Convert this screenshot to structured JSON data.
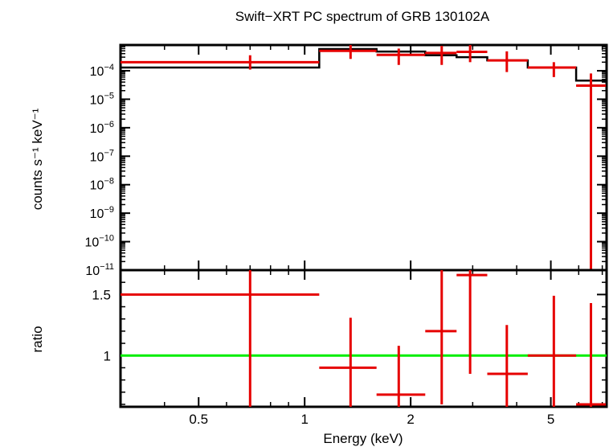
{
  "chart_data": [
    {
      "type": "line",
      "panel": "spectrum",
      "title": "Swift−XRT PC spectrum of GRB 130102A",
      "ylabel": "counts s⁻¹ keV⁻¹",
      "xlim": [
        0.3,
        7.2
      ],
      "ylim": [
        1e-11,
        0.0008
      ],
      "xscale": "log",
      "yscale": "log",
      "yticks": [
        {
          "value": 0.0001,
          "base": "10",
          "exp": "−4"
        },
        {
          "value": 1e-05,
          "base": "10",
          "exp": "−5"
        },
        {
          "value": 1e-06,
          "base": "10",
          "exp": "−6"
        },
        {
          "value": 1e-07,
          "base": "10",
          "exp": "−7"
        },
        {
          "value": 1e-08,
          "base": "10",
          "exp": "−8"
        },
        {
          "value": 1e-09,
          "base": "10",
          "exp": "−9"
        },
        {
          "value": 1e-10,
          "base": "10",
          "exp": "−10"
        },
        {
          "value": 1e-11,
          "base": "10",
          "exp": "−11"
        }
      ],
      "data_color": "#e60000",
      "model_color": "#000000",
      "data_points": [
        {
          "x": 0.7,
          "xlo": 0.3,
          "xhi": 1.1,
          "y": 0.0002,
          "ylo": 0.00011,
          "yhi": 0.00035
        },
        {
          "x": 1.35,
          "xlo": 1.1,
          "xhi": 1.6,
          "y": 0.0005,
          "ylo": 0.00026,
          "yhi": 0.0008
        },
        {
          "x": 1.85,
          "xlo": 1.6,
          "xhi": 2.2,
          "y": 0.00036,
          "ylo": 0.00016,
          "yhi": 0.0006
        },
        {
          "x": 2.45,
          "xlo": 2.2,
          "xhi": 2.7,
          "y": 0.00042,
          "ylo": 0.00016,
          "yhi": 0.00075
        },
        {
          "x": 2.95,
          "xlo": 2.7,
          "xhi": 3.3,
          "y": 0.00046,
          "ylo": 0.0002,
          "yhi": 0.0008
        },
        {
          "x": 3.75,
          "xlo": 3.3,
          "xhi": 4.3,
          "y": 0.00023,
          "ylo": 9e-05,
          "yhi": 0.00048
        },
        {
          "x": 5.1,
          "xlo": 4.3,
          "xhi": 5.9,
          "y": 0.00013,
          "ylo": 6e-05,
          "yhi": 0.0002
        },
        {
          "x": 6.5,
          "xlo": 5.9,
          "xhi": 7.2,
          "y": 3e-05,
          "ylo": 1e-11,
          "yhi": 8e-05
        }
      ],
      "model_steps": [
        {
          "xlo": 0.3,
          "xhi": 1.1,
          "y": 0.00013
        },
        {
          "xlo": 1.1,
          "xhi": 1.6,
          "y": 0.00058
        },
        {
          "xlo": 1.6,
          "xhi": 2.2,
          "y": 0.00047
        },
        {
          "xlo": 2.2,
          "xhi": 2.7,
          "y": 0.00035
        },
        {
          "xlo": 2.7,
          "xhi": 3.3,
          "y": 0.0003
        },
        {
          "xlo": 3.3,
          "xhi": 4.3,
          "y": 0.00023
        },
        {
          "xlo": 4.3,
          "xhi": 5.9,
          "y": 0.00013
        },
        {
          "xlo": 5.9,
          "xhi": 7.2,
          "y": 4.5e-05
        }
      ]
    },
    {
      "type": "scatter",
      "panel": "ratio",
      "xlabel": "Energy (keV)",
      "ylabel": "ratio",
      "xlim": [
        0.3,
        7.2
      ],
      "ylim": [
        0.58,
        1.7
      ],
      "xscale": "log",
      "xticks": [
        {
          "value": 0.5,
          "label": "0.5"
        },
        {
          "value": 1,
          "label": "1"
        },
        {
          "value": 2,
          "label": "2"
        },
        {
          "value": 5,
          "label": "5"
        }
      ],
      "yticks": [
        {
          "value": 1,
          "label": "1"
        },
        {
          "value": 1.5,
          "label": "1.5"
        }
      ],
      "reference_line": {
        "y": 1.0,
        "color": "#00ee00"
      },
      "data_color": "#e60000",
      "data_points": [
        {
          "x": 0.7,
          "xlo": 0.3,
          "xhi": 1.1,
          "y": 1.5,
          "ylo": 0.58,
          "yhi": 1.7
        },
        {
          "x": 1.35,
          "xlo": 1.1,
          "xhi": 1.6,
          "y": 0.9,
          "ylo": 0.58,
          "yhi": 1.31
        },
        {
          "x": 1.85,
          "xlo": 1.6,
          "xhi": 2.2,
          "y": 0.68,
          "ylo": 0.58,
          "yhi": 1.08
        },
        {
          "x": 2.45,
          "xlo": 2.2,
          "xhi": 2.7,
          "y": 1.2,
          "ylo": 0.6,
          "yhi": 1.7
        },
        {
          "x": 2.95,
          "xlo": 2.7,
          "xhi": 3.3,
          "y": 1.66,
          "ylo": 0.85,
          "yhi": 1.7
        },
        {
          "x": 3.75,
          "xlo": 3.3,
          "xhi": 4.3,
          "y": 0.85,
          "ylo": 0.58,
          "yhi": 1.25
        },
        {
          "x": 5.1,
          "xlo": 4.3,
          "xhi": 5.9,
          "y": 1.0,
          "ylo": 0.58,
          "yhi": 1.49
        },
        {
          "x": 6.5,
          "xlo": 5.9,
          "xhi": 7.2,
          "y": 0.6,
          "ylo": 0.58,
          "yhi": 1.43
        }
      ]
    }
  ]
}
